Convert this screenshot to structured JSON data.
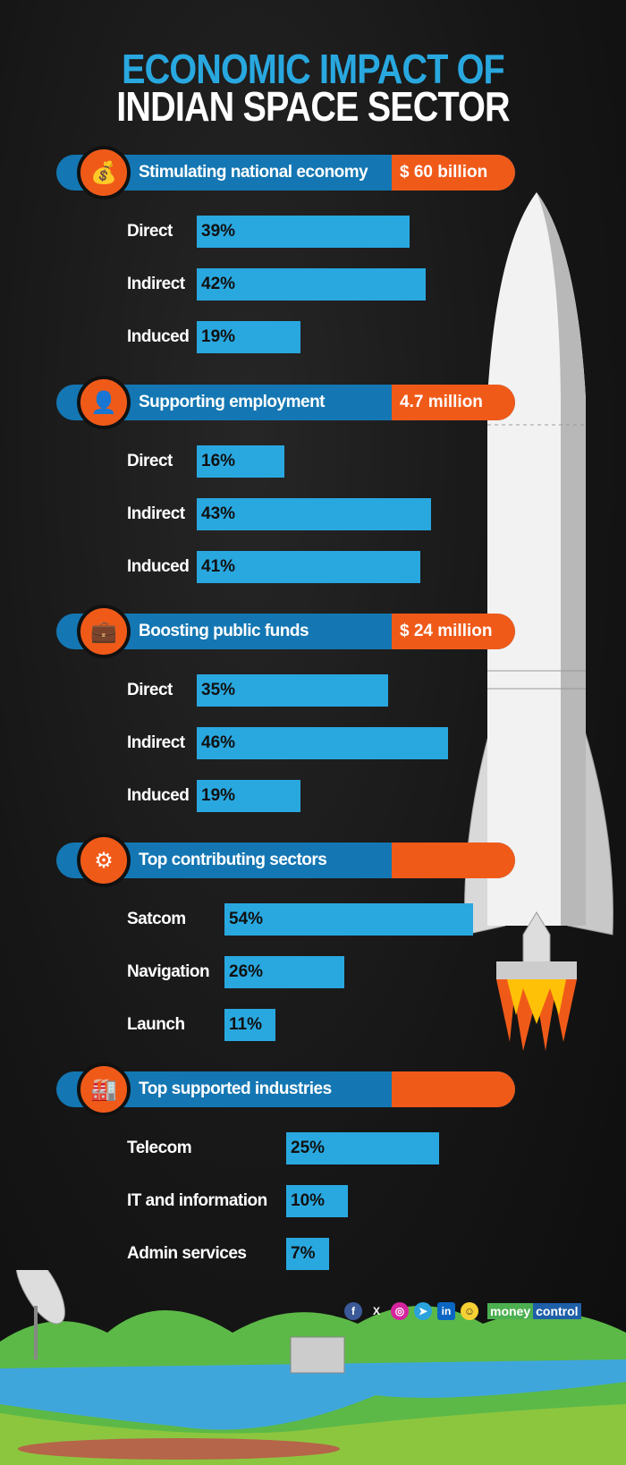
{
  "title": {
    "line1": "ECONOMIC IMPACT OF",
    "line2": "INDIAN SPACE SECTOR"
  },
  "colors": {
    "blue": "#29a8e0",
    "dark_blue": "#1477b3",
    "orange": "#f05a19",
    "background": "#161616"
  },
  "chart_data": [
    {
      "type": "bar",
      "title": "Stimulating national economy",
      "headline_value": "$ 60 billion",
      "icon": "money-hand-icon",
      "categories": [
        "Direct",
        "Indirect",
        "Induced"
      ],
      "values": [
        39,
        42,
        19
      ],
      "labels": [
        "39%",
        "42%",
        "19%"
      ]
    },
    {
      "type": "bar",
      "title": "Supporting employment",
      "headline_value": "4.7 million",
      "icon": "person-icon",
      "categories": [
        "Direct",
        "Indirect",
        "Induced"
      ],
      "values": [
        16,
        43,
        41
      ],
      "labels": [
        "16%",
        "43%",
        "41%"
      ]
    },
    {
      "type": "bar",
      "title": "Boosting public funds",
      "headline_value": "$ 24 million",
      "icon": "briefcase-coins-icon",
      "categories": [
        "Direct",
        "Indirect",
        "Induced"
      ],
      "values": [
        35,
        46,
        19
      ],
      "labels": [
        "35%",
        "46%",
        "19%"
      ]
    },
    {
      "type": "bar",
      "title": "Top contributing sectors",
      "headline_value": "",
      "icon": "gear-chart-icon",
      "categories": [
        "Satcom",
        "Navigation",
        "Launch"
      ],
      "values": [
        54,
        26,
        11
      ],
      "labels": [
        "54%",
        "26%",
        "11%"
      ]
    },
    {
      "type": "bar",
      "title": "Top supported industries",
      "headline_value": "",
      "icon": "factory-icon",
      "categories": [
        "Telecom",
        "IT and information",
        "Admin services"
      ],
      "values": [
        25,
        10,
        7
      ],
      "labels": [
        "25%",
        "10%",
        "7%"
      ]
    }
  ],
  "footer": {
    "social_icons": [
      "facebook-icon",
      "x-icon",
      "instagram-icon",
      "telegram-icon",
      "linkedin-icon",
      "snapchat-icon"
    ],
    "brand_part1": "money",
    "brand_part2": "control"
  }
}
